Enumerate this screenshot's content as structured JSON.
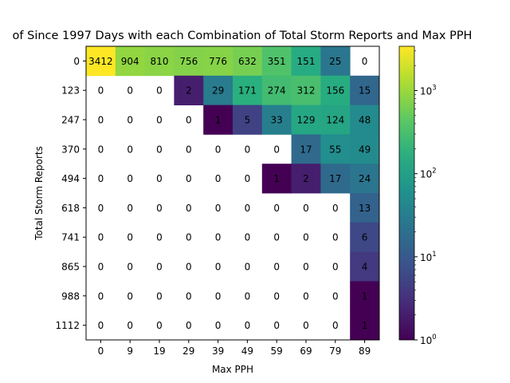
{
  "chart_data": {
    "type": "heatmap",
    "title": "of Since 1997 Days with each Combination of Total Storm Reports and Max PPH",
    "xlabel": "Max PPH",
    "ylabel": "Total Storm Reports",
    "x_categories": [
      "0",
      "9",
      "19",
      "29",
      "39",
      "49",
      "59",
      "69",
      "79",
      "89"
    ],
    "y_categories": [
      "0",
      "123",
      "247",
      "370",
      "494",
      "618",
      "741",
      "865",
      "988",
      "1112"
    ],
    "values": [
      [
        3412,
        904,
        810,
        756,
        776,
        632,
        351,
        151,
        25,
        0
      ],
      [
        0,
        0,
        0,
        2,
        29,
        171,
        274,
        312,
        156,
        15
      ],
      [
        0,
        0,
        0,
        0,
        1,
        5,
        33,
        129,
        124,
        48
      ],
      [
        0,
        0,
        0,
        0,
        0,
        0,
        0,
        17,
        55,
        49
      ],
      [
        0,
        0,
        0,
        0,
        0,
        0,
        1,
        2,
        17,
        24
      ],
      [
        0,
        0,
        0,
        0,
        0,
        0,
        0,
        0,
        0,
        13
      ],
      [
        0,
        0,
        0,
        0,
        0,
        0,
        0,
        0,
        0,
        6
      ],
      [
        0,
        0,
        0,
        0,
        0,
        0,
        0,
        0,
        0,
        4
      ],
      [
        0,
        0,
        0,
        0,
        0,
        0,
        0,
        0,
        0,
        1
      ],
      [
        0,
        0,
        0,
        0,
        0,
        0,
        0,
        0,
        0,
        1
      ]
    ],
    "colorscale": "viridis",
    "color_scale_type": "log",
    "color_range": [
      1,
      3412
    ],
    "colorbar_ticks": [
      {
        "base": "10",
        "exp": "0",
        "value": 1
      },
      {
        "base": "10",
        "exp": "1",
        "value": 10
      },
      {
        "base": "10",
        "exp": "2",
        "value": 100
      },
      {
        "base": "10",
        "exp": "3",
        "value": 1000
      }
    ],
    "zero_cells_colored": false,
    "grid": false
  }
}
